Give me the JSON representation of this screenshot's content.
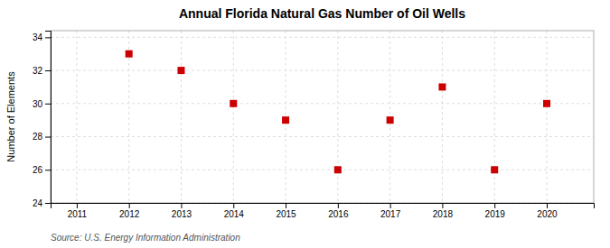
{
  "chart_data": {
    "type": "scatter",
    "title": "Annual Florida Natural Gas Number of Oil Wells",
    "ylabel": "Number of Elements",
    "annotation": "Source: U.S. Energy Information Administration",
    "x": [
      2012,
      2013,
      2014,
      2015,
      2016,
      2017,
      2018,
      2019,
      2020
    ],
    "values": [
      33,
      32,
      30,
      29,
      26,
      29,
      31,
      26,
      30
    ],
    "xlim": [
      2010.5,
      2020.9
    ],
    "ylim": [
      24,
      34.4
    ],
    "xticks": [
      2011,
      2012,
      2013,
      2014,
      2015,
      2016,
      2017,
      2018,
      2019,
      2020
    ],
    "yticks": [
      24,
      26,
      28,
      30,
      32,
      34
    ],
    "color": "#cc0000",
    "marker": "square",
    "grid": true
  }
}
